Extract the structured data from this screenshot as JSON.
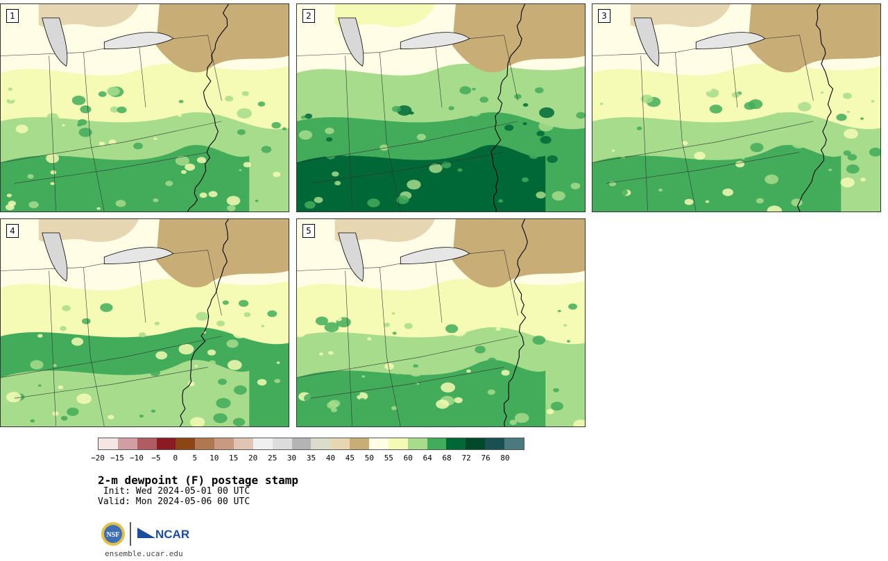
{
  "panels": [
    {
      "label": "1",
      "palette": [
        "#a6dc8c",
        "#42ac5a",
        "#f5fab4",
        "#fffde6",
        "#c8ae76",
        "#e6d6b2"
      ]
    },
    {
      "label": "2",
      "palette": [
        "#42ac5a",
        "#006837",
        "#a6dc8c",
        "#fffde6",
        "#c8ae76",
        "#f5fab4"
      ]
    },
    {
      "label": "3",
      "palette": [
        "#a6dc8c",
        "#42ac5a",
        "#f5fab4",
        "#fffde6",
        "#c8ae76",
        "#e6d6b2"
      ]
    },
    {
      "label": "4",
      "palette": [
        "#42ac5a",
        "#a6dc8c",
        "#f5fab4",
        "#fffde6",
        "#c8ae76",
        "#e6d6b2"
      ]
    },
    {
      "label": "5",
      "palette": [
        "#a6dc8c",
        "#42ac5a",
        "#f5fab4",
        "#fffde6",
        "#c8ae76",
        "#e6d6b2"
      ]
    }
  ],
  "colorbar": {
    "colors": [
      "#f5e6e6",
      "#d39ea3",
      "#b05c63",
      "#8c1a24",
      "#8c4514",
      "#b07850",
      "#c89a80",
      "#e0c4b4",
      "#f0f0f0",
      "#dcdcdc",
      "#b4b4b4",
      "#dcdccc",
      "#e6d6b2",
      "#c8ae76",
      "#fffde6",
      "#f5fab4",
      "#a6dc8c",
      "#42ac5a",
      "#006837",
      "#00492a",
      "#1a5054",
      "#4a7a7e"
    ],
    "ticks": [
      "−20",
      "−15",
      "−10",
      "−5",
      "0",
      "5",
      "10",
      "15",
      "20",
      "25",
      "30",
      "35",
      "40",
      "45",
      "50",
      "55",
      "60",
      "64",
      "68",
      "72",
      "76",
      "80"
    ]
  },
  "title": "2-m dewpoint (F) postage stamp",
  "init": " Init: Wed 2024-05-01 00 UTC",
  "valid": "Valid: Mon 2024-05-06 00 UTC",
  "logos": {
    "nsf_label": "NSF",
    "ncar_label": "NCAR"
  },
  "url": "ensemble.ucar.edu"
}
